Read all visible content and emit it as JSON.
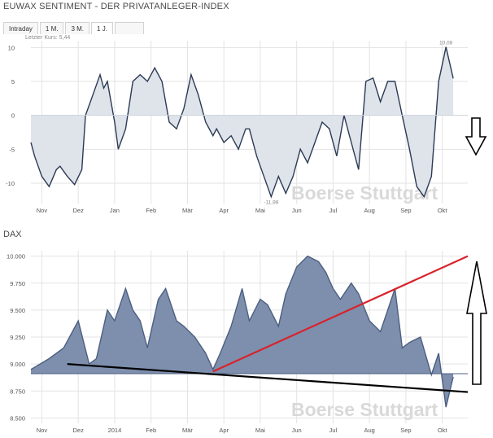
{
  "header": {
    "title": "EUWAX SENTIMENT - DER PRIVATANLEGER-INDEX",
    "tabs": [
      {
        "label": "Intraday",
        "active": false
      },
      {
        "label": "1 M.",
        "active": false
      },
      {
        "label": "3 M.",
        "active": false
      },
      {
        "label": "1 J.",
        "active": true
      }
    ],
    "last_price": "Letzter Kurs: 5,44"
  },
  "watermark": "Boerse Stuttgart",
  "colors": {
    "sentiment_line": "#2b3a55",
    "sentiment_fill": "#dfe3ea",
    "dax_fill": "#7d8fad",
    "dax_line": "#4d5f80",
    "red_trend": "#d9222b",
    "black_trend": "#000000",
    "grid": "#e3e3e3"
  },
  "chart_data": [
    {
      "name": "euwax-sentiment",
      "type": "area",
      "title": "",
      "x_tick_labels": [
        "Nov",
        "Dez",
        "Jan",
        "Feb",
        "Mär",
        "Apr",
        "Mai",
        "Jun",
        "Jul",
        "Aug",
        "Sep",
        "Okt"
      ],
      "y_tick_labels": [
        "10",
        "5",
        "0",
        "-5",
        "-10"
      ],
      "ylim": [
        -13,
        11
      ],
      "baseline": 0,
      "grid": true,
      "annotations": {
        "max": "10,08",
        "min": "-11,98"
      },
      "series": [
        {
          "x": [
            0,
            0.1,
            0.3,
            0.5,
            0.7,
            0.8,
            1.0,
            1.2,
            1.4,
            1.5,
            1.7,
            1.9,
            2.0,
            2.1,
            2.3,
            2.4,
            2.6,
            2.8,
            3.0,
            3.2,
            3.4,
            3.6,
            3.8,
            4.0,
            4.2,
            4.4,
            4.6,
            4.8,
            5.0,
            5.1,
            5.3,
            5.5,
            5.7,
            5.9,
            6.0,
            6.2,
            6.4,
            6.6,
            6.8,
            7.0,
            7.2,
            7.4,
            7.6,
            7.8,
            8.0,
            8.2,
            8.4,
            8.6,
            8.8,
            9.0,
            9.2,
            9.4,
            9.6,
            9.8,
            10.0,
            10.2,
            10.4,
            10.6,
            10.8,
            11.0,
            11.2,
            11.4,
            11.6
          ],
          "values": [
            -4,
            -6,
            -9,
            -10.5,
            -8,
            -7.5,
            -9,
            -10.2,
            -8,
            0,
            3,
            6,
            4,
            5,
            -1,
            -5,
            -2,
            5,
            6,
            5,
            7,
            5,
            -1,
            -2,
            1,
            6,
            3,
            -1,
            -3,
            -2,
            -4,
            -3,
            -5,
            -2,
            -2,
            -6,
            -9,
            -12,
            -9,
            -11.5,
            -9,
            -5,
            -7,
            -4,
            -1,
            -2,
            -6,
            0,
            -4,
            -8,
            5,
            5.5,
            2,
            5,
            5,
            0,
            -5,
            -10.5,
            -12,
            -9,
            5,
            10.08,
            5.44
          ]
        }
      ]
    },
    {
      "name": "dax",
      "type": "area",
      "title": "DAX",
      "x_tick_labels": [
        "Nov",
        "Dez",
        "2014",
        "Feb",
        "Mär",
        "Apr",
        "Mai",
        "Jun",
        "Jul",
        "Aug",
        "Sep",
        "Okt"
      ],
      "y_tick_labels": [
        "10.000",
        "9.750",
        "9.500",
        "9.250",
        "9.000",
        "8.750",
        "8.500"
      ],
      "ylim": [
        8450,
        10050
      ],
      "baseline": 8910,
      "grid": true,
      "series": [
        {
          "name": "DAX",
          "x": [
            0,
            0.5,
            0.9,
            1.3,
            1.6,
            1.8,
            2.1,
            2.3,
            2.6,
            2.8,
            3.0,
            3.2,
            3.5,
            3.7,
            4.0,
            4.2,
            4.5,
            4.8,
            5.0,
            5.2,
            5.5,
            5.8,
            6.0,
            6.3,
            6.5,
            6.8,
            7.0,
            7.3,
            7.6,
            7.9,
            8.1,
            8.3,
            8.5,
            8.8,
            9.0,
            9.3,
            9.6,
            9.8,
            10.0,
            10.2,
            10.4,
            10.7,
            11.0,
            11.2,
            11.4,
            11.6
          ],
          "values": [
            8950,
            9050,
            9150,
            9400,
            9000,
            9050,
            9500,
            9400,
            9700,
            9500,
            9400,
            9150,
            9600,
            9700,
            9400,
            9350,
            9250,
            9100,
            8950,
            9100,
            9350,
            9700,
            9400,
            9600,
            9550,
            9350,
            9650,
            9900,
            10000,
            9950,
            9850,
            9700,
            9600,
            9750,
            9650,
            9400,
            9300,
            9500,
            9700,
            9150,
            9200,
            9250,
            8900,
            9100,
            8600,
            8880
          ]
        }
      ],
      "trend_lines": [
        {
          "color": "red",
          "x": [
            5.0,
            12.0
          ],
          "values": [
            8930,
            10000
          ]
        },
        {
          "color": "black",
          "x": [
            1.0,
            12.0
          ],
          "values": [
            9000,
            8740
          ]
        }
      ]
    }
  ]
}
